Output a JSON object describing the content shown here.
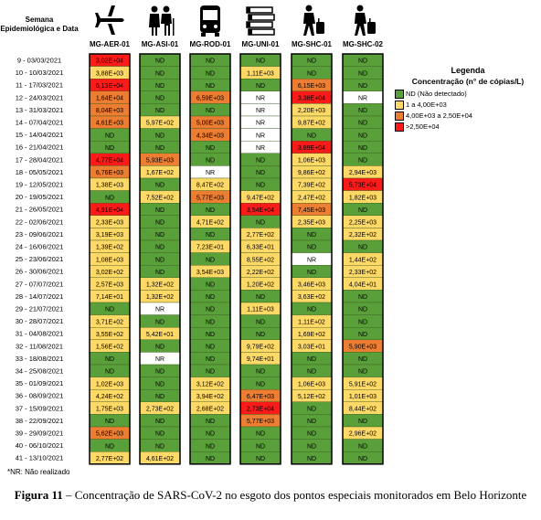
{
  "header": {
    "row_label": "Semana Epidemiológica e Data"
  },
  "icons": [
    "airplane-icon",
    "elderly-couple-icon",
    "bus-icon",
    "books-icon",
    "traveler-luggage-icon",
    "traveler-luggage-icon"
  ],
  "legend": {
    "title": "Legenda",
    "subtitle": "Concentração (n° de cópias/L)",
    "items": [
      {
        "label": "ND (Não detectado)",
        "color": "#5aa03a"
      },
      {
        "label": "1 a 4,00E+03",
        "color": "#ffd966"
      },
      {
        "label": "4,00E+03 a 2,50E+04",
        "color": "#ed7d31"
      },
      {
        "label": ">2,50E+04",
        "color": "#ff1a1a"
      }
    ]
  },
  "note": "*NR: Não realizado",
  "caption": {
    "bold": "Figura 11",
    "text": " – Concentração de SARS-CoV-2 no esgoto dos pontos especiais monitorados em Belo Horizonte"
  },
  "chart_data": {
    "type": "heatmap",
    "x": [
      "MG-AER-01",
      "MG-ASI-01",
      "MG-ROD-01",
      "MG-UNI-01",
      "MG-SHC-01",
      "MG-SHC-02"
    ],
    "y": [
      "9 - 03/03/2021",
      "10 - 10/03/2021",
      "11 - 17/03/2021",
      "12 - 24/03/2021",
      "13 - 31/03/2021",
      "14 - 07/04/2021",
      "15 - 14/04/2021",
      "16 - 21/04/2021",
      "17 - 28/04/2021",
      "18 - 05/05/2021",
      "19 - 12/05/2021",
      "20 - 19/05/2021",
      "21 - 26/05/2021",
      "22 - 02/06/2021",
      "23 - 09/06/2021",
      "24 - 16/06/2021",
      "25 - 23/06/2021",
      "26 - 30/06/2021",
      "27 - 07/07/2021",
      "28 - 14/07/2021",
      "29 - 21/07/2021",
      "30 - 28/07/2021",
      "31 - 04/08/2021",
      "32 - 11/08/2021",
      "33 - 18/08/2021",
      "34 - 25/08/2021",
      "35 - 01/09/2021",
      "36 - 08/09/2021",
      "37 - 15/09/2021",
      "38 - 22/09/2021",
      "39 - 29/09/2021",
      "40 - 06/10/2021",
      "41 - 13/10/2021"
    ],
    "values": [
      [
        "3,02E+04",
        "ND",
        "ND",
        "ND",
        "ND",
        "ND"
      ],
      [
        "3,88E+03",
        "ND",
        "ND",
        "1,11E+03",
        "ND",
        "ND"
      ],
      [
        "6,13E+04",
        "ND",
        "ND",
        "ND",
        "6,15E+03",
        "ND"
      ],
      [
        "1,64E+04",
        "ND",
        "6,59E+03",
        "NR",
        "3,38E+04",
        "NR"
      ],
      [
        "8,04E+03",
        "ND",
        "ND",
        "NR",
        "2,20E+03",
        "ND"
      ],
      [
        "4,61E+03",
        "5,97E+02",
        "5,00E+03",
        "NR",
        "9,87E+02",
        "ND"
      ],
      [
        "ND",
        "ND",
        "4,34E+03",
        "NR",
        "ND",
        "ND"
      ],
      [
        "ND",
        "ND",
        "ND",
        "NR",
        "3,89E+04",
        "ND"
      ],
      [
        "4,77E+04",
        "5,93E+03",
        "ND",
        "ND",
        "1,06E+03",
        "ND"
      ],
      [
        "6,76E+03",
        "1,67E+02",
        "NR",
        "ND",
        "9,86E+02",
        "2,94E+03"
      ],
      [
        "1,38E+03",
        "ND",
        "8,47E+02",
        "ND",
        "7,39E+02",
        "5,73E+04"
      ],
      [
        "ND",
        "7,52E+02",
        "5,77E+03",
        "9,47E+02",
        "2,47E+02",
        "1,82E+03"
      ],
      [
        "4,91E+04",
        "ND",
        "ND",
        "3,54E+04",
        "7,45E+03",
        "ND"
      ],
      [
        "2,33E+03",
        "ND",
        "4,71E+02",
        "ND",
        "2,35E+03",
        "2,25E+03"
      ],
      [
        "3,19E+03",
        "ND",
        "ND",
        "2,77E+02",
        "ND",
        "2,32E+02"
      ],
      [
        "1,39E+02",
        "ND",
        "7,23E+01",
        "6,33E+01",
        "ND",
        "ND"
      ],
      [
        "1,08E+03",
        "ND",
        "ND",
        "8,55E+02",
        "NR",
        "1,44E+02"
      ],
      [
        "3,02E+02",
        "ND",
        "3,54E+03",
        "2,22E+02",
        "ND",
        "2,33E+02"
      ],
      [
        "2,57E+03",
        "1,32E+02",
        "ND",
        "1,20E+02",
        "3,46E+03",
        "4,04E+01"
      ],
      [
        "7,14E+01",
        "1,32E+02",
        "ND",
        "ND",
        "3,63E+02",
        "ND"
      ],
      [
        "ND",
        "NR",
        "ND",
        "1,11E+03",
        "ND",
        "ND"
      ],
      [
        "3,71E+02",
        "ND",
        "ND",
        "ND",
        "1,11E+02",
        "ND"
      ],
      [
        "3,55E+02",
        "5,42E+01",
        "ND",
        "ND",
        "1,69E+02",
        "ND"
      ],
      [
        "1,56E+02",
        "ND",
        "ND",
        "9,79E+02",
        "3,03E+01",
        "5,90E+03"
      ],
      [
        "ND",
        "NR",
        "ND",
        "9,74E+01",
        "ND",
        "ND"
      ],
      [
        "ND",
        "ND",
        "ND",
        "ND",
        "ND",
        "ND"
      ],
      [
        "1,02E+03",
        "ND",
        "3,12E+02",
        "ND",
        "1,06E+03",
        "5,91E+02"
      ],
      [
        "4,24E+02",
        "ND",
        "3,94E+02",
        "6,47E+03",
        "5,12E+02",
        "1,01E+03"
      ],
      [
        "1,75E+03",
        "2,73E+02",
        "2,68E+02",
        "2,73E+04",
        "ND",
        "8,44E+02"
      ],
      [
        "ND",
        "ND",
        "ND",
        "5,77E+03",
        "ND",
        "ND"
      ],
      [
        "5,62E+03",
        "ND",
        "ND",
        "ND",
        "ND",
        "2,96E+02"
      ],
      [
        "ND",
        "ND",
        "ND",
        "ND",
        "ND",
        "ND"
      ],
      [
        "2,77E+02",
        "4,61E+02",
        "ND",
        "ND",
        "ND",
        "ND"
      ]
    ]
  }
}
